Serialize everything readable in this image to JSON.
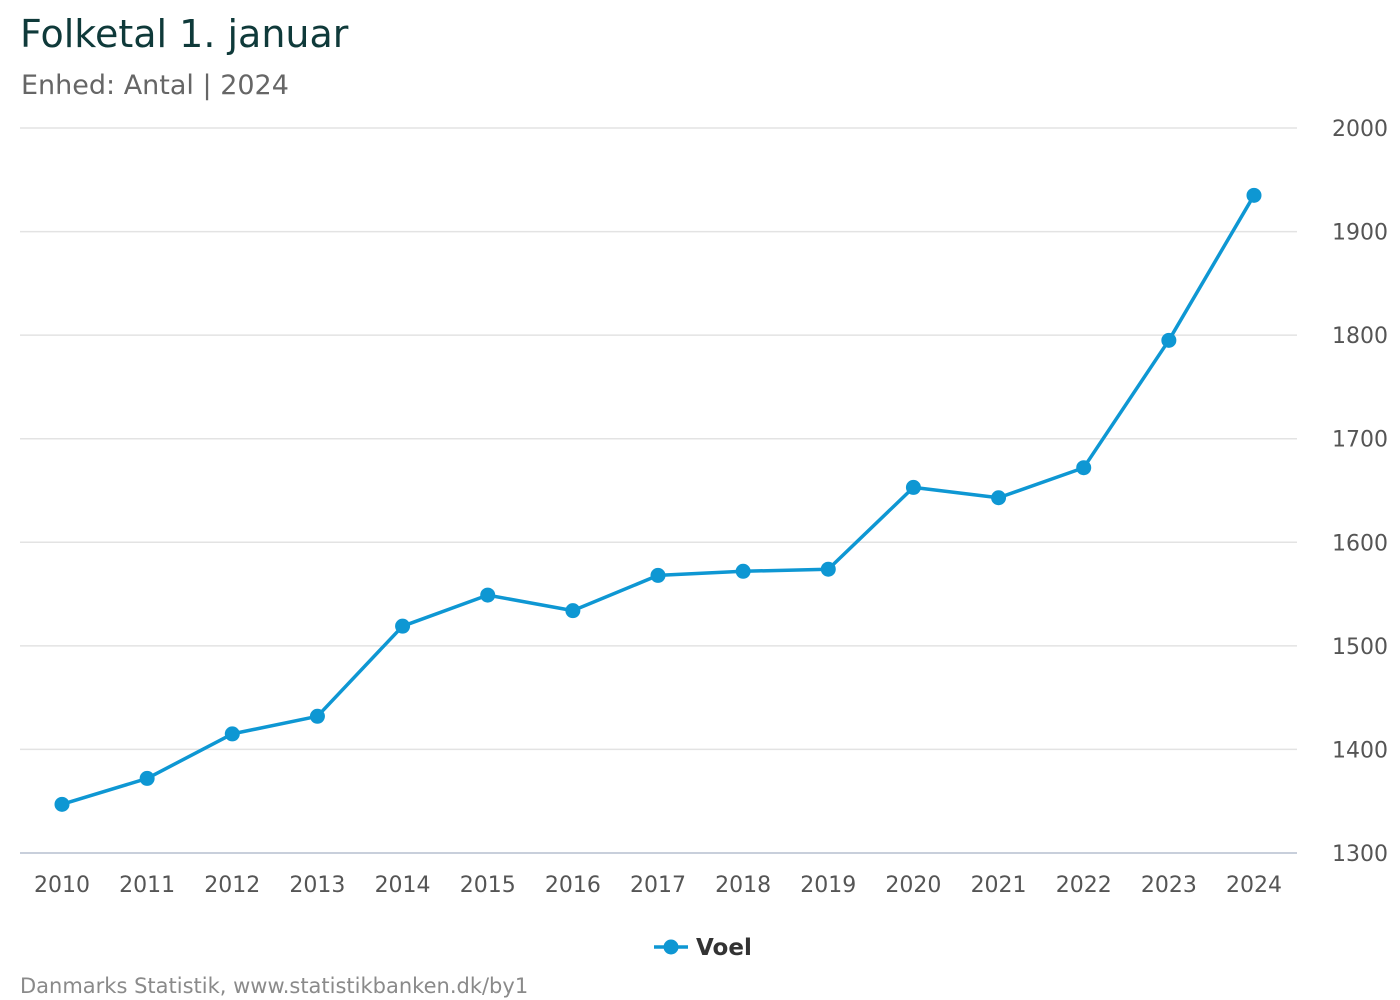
{
  "title": "Folketal 1. januar",
  "subtitle": "Enhed: Antal | 2024",
  "source": "Danmarks Statistik, www.statistikbanken.dk/by1",
  "chart_data": {
    "type": "line",
    "x": [
      "2010",
      "2011",
      "2012",
      "2013",
      "2014",
      "2015",
      "2016",
      "2017",
      "2018",
      "2019",
      "2020",
      "2021",
      "2022",
      "2023",
      "2024"
    ],
    "series": [
      {
        "name": "Voel",
        "color": "#0e97d3",
        "values": [
          1347,
          1372,
          1415,
          1432,
          1519,
          1549,
          1534,
          1568,
          1572,
          1574,
          1653,
          1643,
          1672,
          1795,
          1935
        ]
      }
    ],
    "ylim": [
      1300,
      2000
    ],
    "yticks": [
      "1300",
      "1400",
      "1500",
      "1600",
      "1700",
      "1800",
      "1900",
      "2000"
    ],
    "y_axis_side": "right",
    "grid": true,
    "legend_position": "bottom-center"
  }
}
